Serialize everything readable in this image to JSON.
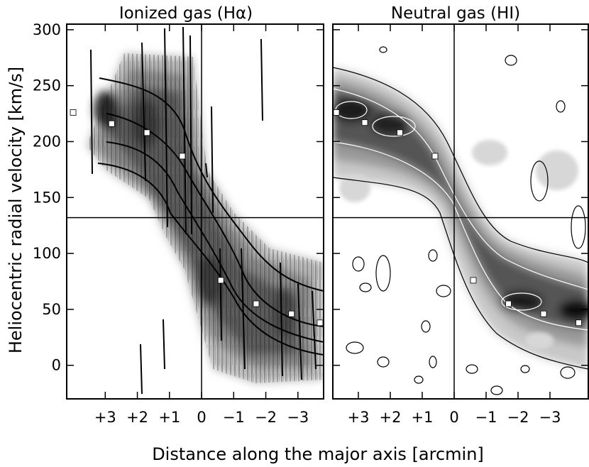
{
  "figure": {
    "xlabel": "Distance along the major axis [arcmin]",
    "ylabel": "Heliocentric radial velocity [km/s]"
  },
  "chart_data": [
    {
      "type": "heatmap",
      "title": "Ionized gas (Hα)",
      "x_axis": {
        "label": "Distance along the major axis [arcmin]",
        "range": [
          4.2,
          -3.8
        ],
        "reversed": true,
        "ticks": [
          3,
          2,
          1,
          0,
          -1,
          -2,
          -3
        ],
        "tick_labels": [
          "+3",
          "+2",
          "+1",
          "0",
          "−1",
          "−2",
          "−3"
        ]
      },
      "y_axis": {
        "label": "Heliocentric radial velocity [km/s]",
        "range": [
          -30,
          305
        ],
        "ticks": [
          0,
          50,
          100,
          150,
          200,
          250,
          300
        ],
        "tick_labels": [
          "0",
          "50",
          "100",
          "150",
          "200",
          "250",
          "300"
        ]
      },
      "reference_lines": {
        "x": 0,
        "y": 132
      },
      "rotation_curve_markers": [
        {
          "x": 4.0,
          "y": 226
        },
        {
          "x": 2.8,
          "y": 216
        },
        {
          "x": 1.7,
          "y": 208
        },
        {
          "x": 0.6,
          "y": 187
        },
        {
          "x": -0.6,
          "y": 76
        },
        {
          "x": -1.7,
          "y": 55
        },
        {
          "x": -2.8,
          "y": 46
        },
        {
          "x": -3.9,
          "y": 38
        }
      ]
    },
    {
      "type": "heatmap",
      "title": "Neutral gas (HI)",
      "x_axis": {
        "label": "Distance along the major axis [arcmin]",
        "range": [
          3.8,
          -4.2
        ],
        "reversed": true,
        "ticks": [
          3,
          2,
          1,
          0,
          -1,
          -2,
          -3
        ],
        "tick_labels": [
          "+3",
          "+2",
          "+1",
          "0",
          "−1",
          "−2",
          "−3"
        ]
      },
      "y_axis": {
        "range": [
          -30,
          305
        ],
        "ticks": [
          0,
          50,
          100,
          150,
          200,
          250,
          300
        ]
      },
      "reference_lines": {
        "x": 0,
        "y": 132
      },
      "rotation_curve_markers": [
        {
          "x": 3.7,
          "y": 226
        },
        {
          "x": 2.8,
          "y": 217
        },
        {
          "x": 1.7,
          "y": 208
        },
        {
          "x": 0.6,
          "y": 187
        },
        {
          "x": -0.6,
          "y": 76
        },
        {
          "x": -1.7,
          "y": 55
        },
        {
          "x": -2.8,
          "y": 46
        },
        {
          "x": -3.9,
          "y": 38
        }
      ]
    }
  ]
}
